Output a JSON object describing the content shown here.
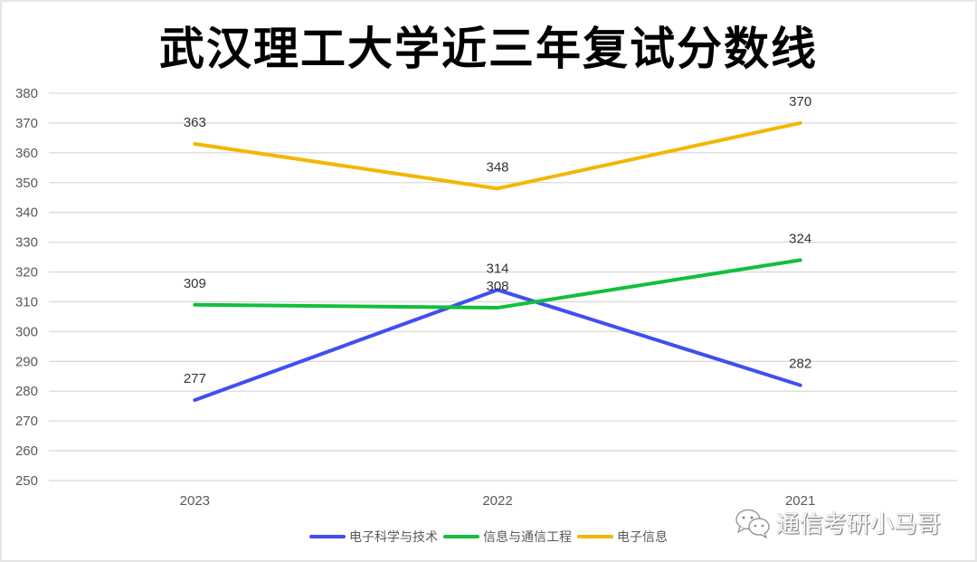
{
  "title": "武汉理工大学近三年复试分数线",
  "watermark": {
    "icon": "wechat-icon",
    "text": "通信考研小马哥"
  },
  "chart_data": {
    "type": "line",
    "title": "武汉理工大学近三年复试分数线",
    "xlabel": "",
    "ylabel": "",
    "categories": [
      "2023",
      "2022",
      "2021"
    ],
    "ylim": [
      250,
      380
    ],
    "yticks": [
      380,
      370,
      360,
      350,
      340,
      330,
      320,
      310,
      300,
      290,
      280,
      270,
      260,
      250
    ],
    "grid": true,
    "legend_position": "bottom",
    "data_labels": true,
    "series": [
      {
        "name": "电子科学与技术",
        "color": "#3f4ff0",
        "values": [
          277,
          314,
          282
        ]
      },
      {
        "name": "信息与通信工程",
        "color": "#12bf3c",
        "values": [
          309,
          308,
          324
        ]
      },
      {
        "name": "电子信息",
        "color": "#f2b705",
        "values": [
          363,
          348,
          370
        ]
      }
    ]
  },
  "legend": {
    "items": [
      {
        "label": "电子科学与技术",
        "color": "#3f4ff0"
      },
      {
        "label": "信息与通信工程",
        "color": "#12bf3c"
      },
      {
        "label": "电子信息",
        "color": "#f2b705"
      }
    ]
  }
}
